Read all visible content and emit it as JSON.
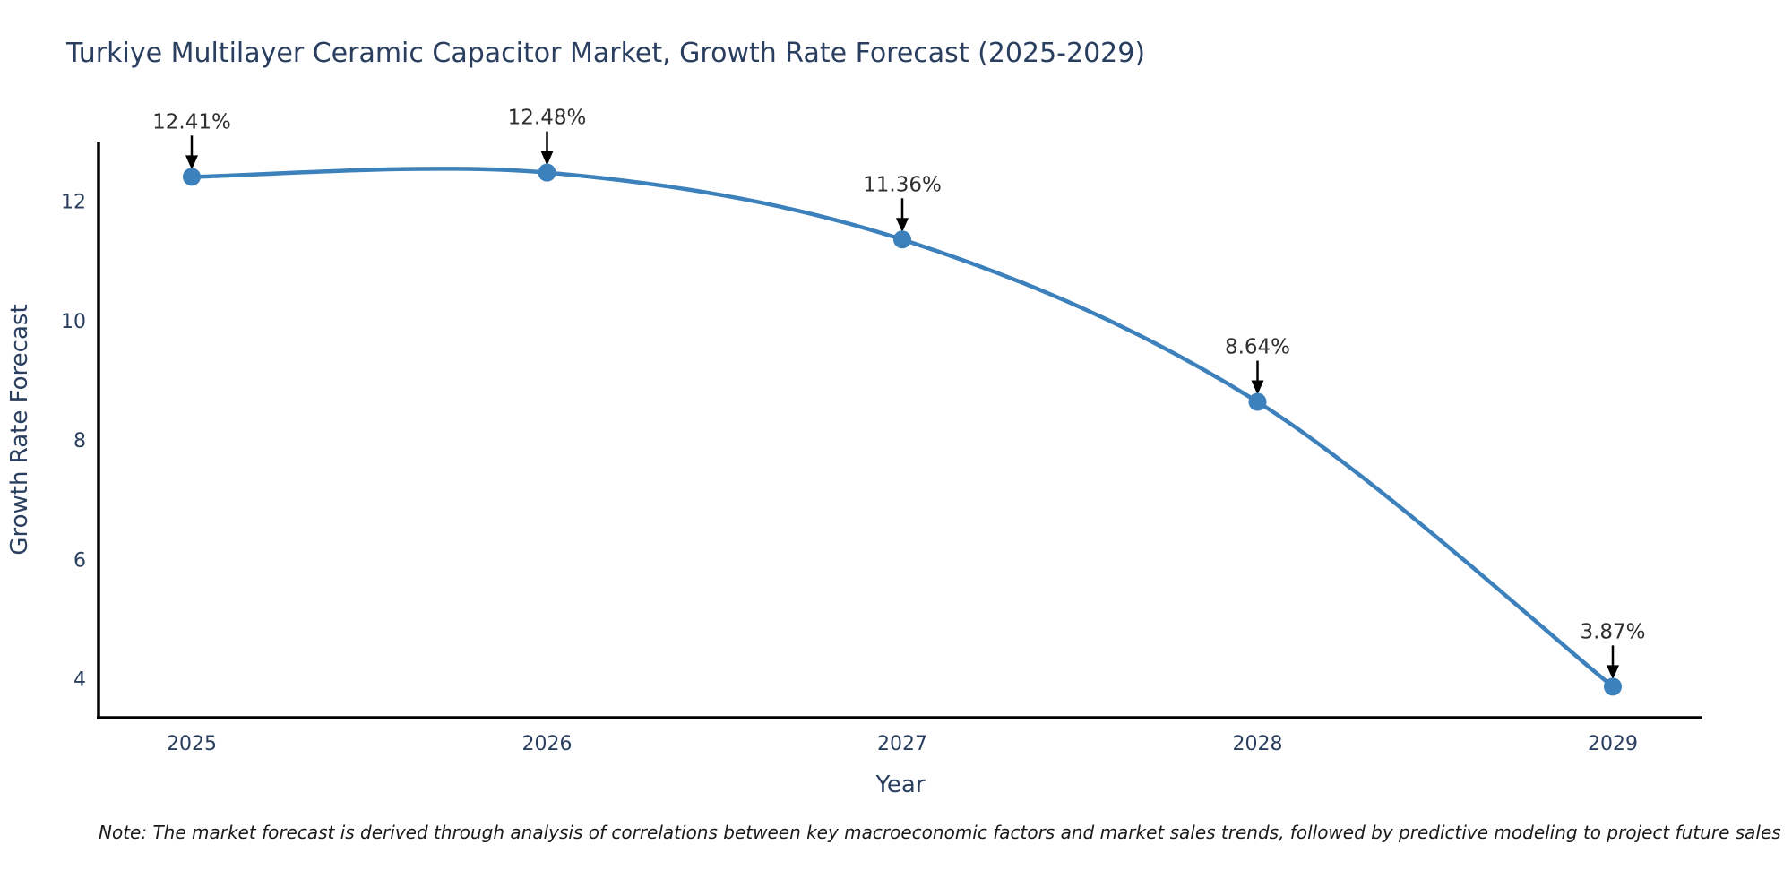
{
  "title": "Turkiye Multilayer Ceramic Capacitor Market, Growth Rate Forecast (2025-2029)",
  "note": "Note: The market forecast is derived through analysis of correlations between key macroeconomic factors and market sales trends, followed by predictive modeling to project future sales",
  "chart_data": {
    "type": "line",
    "categories": [
      "2025",
      "2026",
      "2027",
      "2028",
      "2029"
    ],
    "values": [
      12.41,
      12.48,
      11.36,
      8.64,
      3.87
    ],
    "point_labels": [
      "12.41%",
      "12.48%",
      "11.36%",
      "8.64%",
      "3.87%"
    ],
    "title": "Turkiye Multilayer Ceramic Capacitor Market, Growth Rate Forecast (2025-2029)",
    "xlabel": "Year",
    "ylabel": "Growth Rate Forecast",
    "y_ticks": [
      4,
      6,
      8,
      10,
      12
    ],
    "ylim": [
      3.35,
      13.0
    ],
    "line_shape": "spline",
    "grid": false,
    "legend": "none",
    "colors": {
      "line": "#3c80bc",
      "marker": "#3c80bc",
      "axis_line": "#000000",
      "axis_text": "#2a3f5f",
      "annotation_text": "#2f2f2f",
      "arrow": "#000000",
      "background": "#ffffff"
    }
  }
}
